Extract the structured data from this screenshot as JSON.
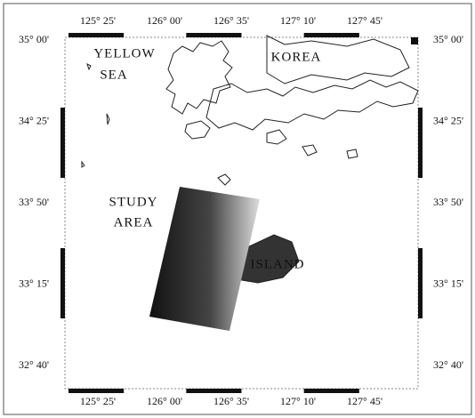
{
  "longitude_labels": [
    "125° 25'",
    "126° 00'",
    "126° 35'",
    "127° 10'",
    "127° 45'"
  ],
  "latitude_labels": [
    "35° 00'",
    "34° 25'",
    "33° 50'",
    "33° 15'",
    "32° 40'"
  ],
  "places": {
    "yellow_sea": [
      "YELLOW",
      "SEA"
    ],
    "korea": "KOREA",
    "study_area": [
      "STUDY",
      "AREA"
    ],
    "island": "ISLAND"
  }
}
